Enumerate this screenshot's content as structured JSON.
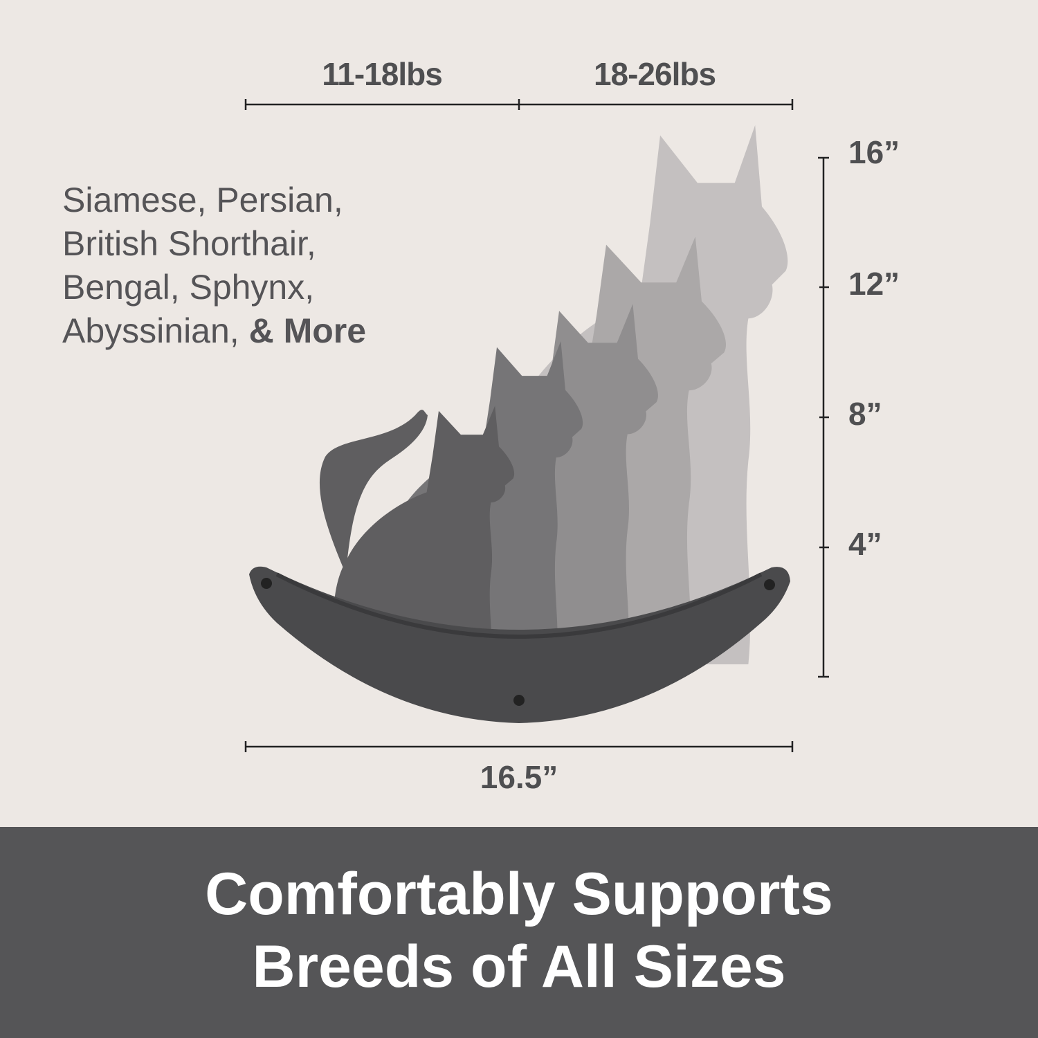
{
  "weights": [
    "11-18lbs",
    "18-26lbs"
  ],
  "heights": [
    "16”",
    "12”",
    "8”",
    "4”"
  ],
  "breeds": {
    "lines": [
      "Siamese, Persian,",
      "British Shorthair,",
      "Bengal, Sphynx,",
      "Abyssinian, "
    ],
    "emphasis": "& More"
  },
  "width": "16.5”",
  "headline": {
    "line1": "Comfortably Supports",
    "line2": "Breeds of All Sizes"
  },
  "colors": {
    "background": "#ede8e4",
    "band": "#555557",
    "text": "#4f4f51",
    "felt": "#4a4a4c",
    "cats": [
      "#c4c0c0",
      "#aba8a8",
      "#908e8f",
      "#767577",
      "#5f5e60"
    ]
  }
}
